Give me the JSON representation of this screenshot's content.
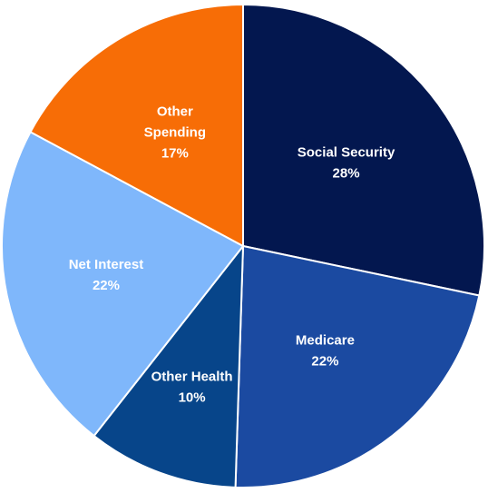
{
  "chart_data": {
    "type": "pie",
    "start_angle_deg": 0,
    "direction": "clockwise",
    "slices": [
      {
        "label_lines": [
          "Social Security"
        ],
        "percent_text": "28%",
        "value": 28,
        "color": "#03174f"
      },
      {
        "label_lines": [
          "Medicare"
        ],
        "percent_text": "22%",
        "value": 22,
        "color": "#1b4aa1"
      },
      {
        "label_lines": [
          "Other Health"
        ],
        "percent_text": "10%",
        "value": 10,
        "color": "#07458a"
      },
      {
        "label_lines": [
          "Net Interest"
        ],
        "percent_text": "22%",
        "value": 22,
        "color": "#7fb7fb"
      },
      {
        "label_lines": [
          "Other",
          "Spending"
        ],
        "percent_text": "17%",
        "value": 17,
        "color": "#f76d06"
      }
    ],
    "slice_border_color": "#ffffff"
  }
}
